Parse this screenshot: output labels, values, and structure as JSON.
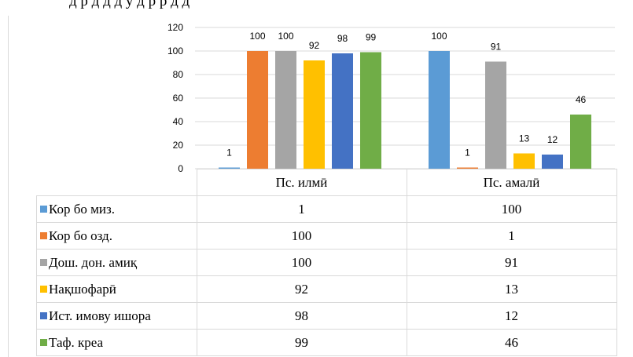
{
  "top_text": "д  р  д  д          д  у  д  р         р  д  д",
  "chart_data": {
    "type": "bar",
    "categories": [
      "Пс. илмӣ",
      "Пс. амалӣ"
    ],
    "series": [
      {
        "name": "Кор бо миз.",
        "color": "#5b9bd5",
        "values": [
          1,
          100
        ]
      },
      {
        "name": "Кор бо озд.",
        "color": "#ed7d31",
        "values": [
          100,
          1
        ]
      },
      {
        "name": "Дош. дон. амиқ",
        "color": "#a5a5a5",
        "values": [
          100,
          91
        ]
      },
      {
        "name": "Нақшофарӣ",
        "color": "#ffc000",
        "values": [
          92,
          13
        ]
      },
      {
        "name": "Ист. имову ишора",
        "color": "#4472c4",
        "values": [
          98,
          12
        ]
      },
      {
        "name": "Таф. креа",
        "color": "#70ad47",
        "values": [
          99,
          46
        ]
      }
    ],
    "ylim": [
      0,
      120
    ],
    "yticks": [
      0,
      20,
      40,
      60,
      80,
      100,
      120
    ],
    "grid": true,
    "data_labels": true,
    "legend": "data table"
  }
}
